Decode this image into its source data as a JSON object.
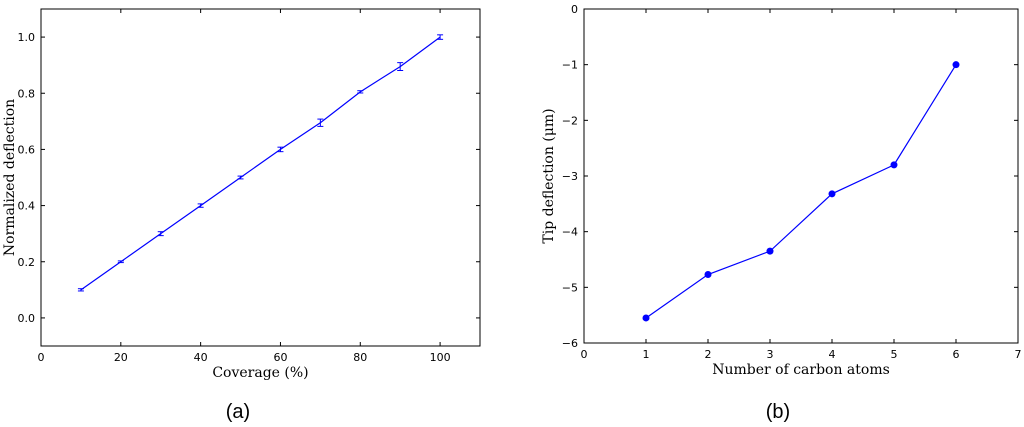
{
  "chart_data": [
    {
      "type": "line",
      "panel_label": "(a)",
      "xlabel": "Coverage (%)",
      "ylabel": "Normalized deflection",
      "xlim": [
        0,
        110
      ],
      "ylim": [
        -0.1,
        1.1
      ],
      "xticks": [
        0,
        20,
        40,
        60,
        80,
        100
      ],
      "xtick_labels": [
        "0",
        "20",
        "40",
        "60",
        "80",
        "100"
      ],
      "yticks": [
        0.0,
        0.2,
        0.4,
        0.6,
        0.8,
        1.0
      ],
      "ytick_labels": [
        "0.0",
        "0.2",
        "0.4",
        "0.6",
        "0.8",
        "1.0"
      ],
      "grid": false,
      "series": [
        {
          "color": "#0000ff",
          "markers": false,
          "error_bars": true,
          "x": [
            10,
            20,
            30,
            40,
            50,
            60,
            70,
            80,
            90,
            100
          ],
          "y": [
            0.1,
            0.2,
            0.3,
            0.4,
            0.5,
            0.6,
            0.695,
            0.805,
            0.895,
            1.0
          ],
          "yerr": [
            0.004,
            0.003,
            0.007,
            0.006,
            0.005,
            0.008,
            0.013,
            0.004,
            0.014,
            0.008
          ]
        }
      ]
    },
    {
      "type": "line",
      "panel_label": "(b)",
      "xlabel": "Number of carbon atoms",
      "ylabel": "Tip deflection (μm)",
      "xlim": [
        0,
        7
      ],
      "ylim": [
        -6,
        0
      ],
      "xticks": [
        0,
        1,
        2,
        3,
        4,
        5,
        6,
        7
      ],
      "xtick_labels": [
        "0",
        "1",
        "2",
        "3",
        "4",
        "5",
        "6",
        "7"
      ],
      "yticks": [
        -6,
        -5,
        -4,
        -3,
        -2,
        -1,
        0
      ],
      "ytick_labels": [
        "−6",
        "−5",
        "−4",
        "−3",
        "−2",
        "−1",
        "0"
      ],
      "grid": false,
      "series": [
        {
          "color": "#0000ff",
          "markers": true,
          "x": [
            1,
            2,
            3,
            4,
            5,
            6
          ],
          "y": [
            -5.55,
            -4.77,
            -4.35,
            -3.32,
            -2.8,
            -1.0
          ]
        }
      ]
    }
  ]
}
